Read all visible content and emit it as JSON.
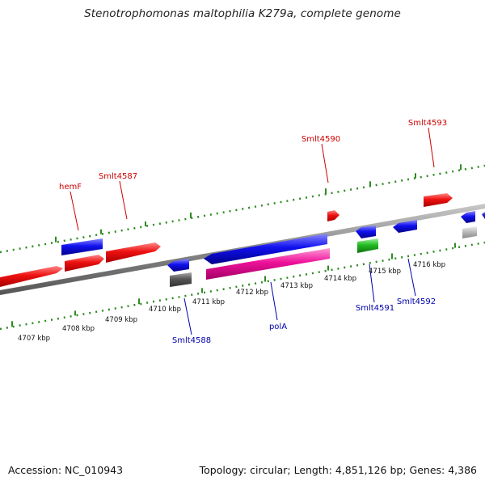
{
  "title": "Stenotrophomonas maltophilia K279a, complete genome",
  "footer": {
    "accession": "Accession: NC_010943",
    "summary": "Topology: circular; Length: 4,851,126 bp; Genes: 4,386"
  },
  "colors": {
    "backbone": "#888888",
    "tick": "#2e8b22",
    "forward_gene": "#ee1111",
    "reverse_gene": "#1111ee",
    "pink_gene": "#ee1199",
    "green_gene": "#22bb22",
    "dark_gray_gene": "#555555",
    "light_gray_gene": "#bbbbbb",
    "label_top": "#cc0000",
    "label_bottom": "#0000aa"
  },
  "scale_labels": [
    "4707 kbp",
    "4708 kbp",
    "4709 kbp",
    "4710 kbp",
    "4711 kbp",
    "4712 kbp",
    "4713 kbp",
    "4714 kbp",
    "4715 kbp",
    "4716 kbp"
  ],
  "top_labels": [
    "hemF",
    "Smlt4587",
    "Smlt4590",
    "Smlt4593"
  ],
  "bottom_labels": [
    "Smlt4588",
    "polA",
    "Smlt4591",
    "Smlt4592"
  ]
}
